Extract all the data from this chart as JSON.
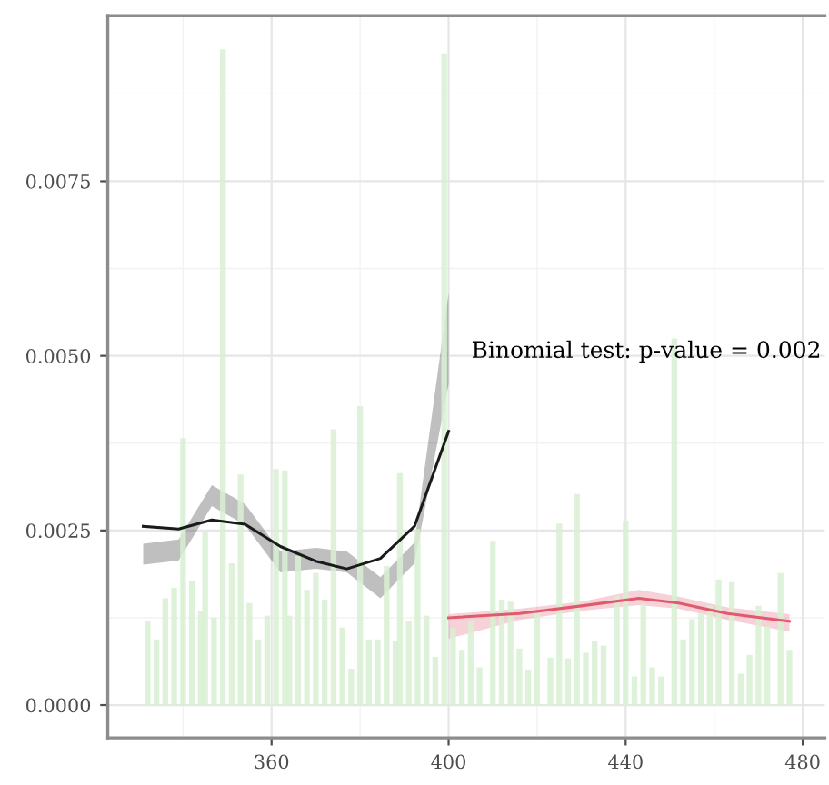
{
  "chart_data": {
    "type": "bar",
    "annotations": [
      "Binomial test: p-value = 0.002"
    ],
    "xlim": [
      323,
      485
    ],
    "ylim": [
      -0.00047,
      0.00987
    ],
    "xticks": [
      360,
      400,
      440,
      480
    ],
    "yticks": [
      {
        "value": 0,
        "label": "0.0000"
      },
      {
        "value": 0.0025,
        "label": "0.0025"
      },
      {
        "value": 0.005,
        "label": "0.0050"
      },
      {
        "value": 0.0075,
        "label": "0.0075"
      }
    ],
    "grid": true,
    "series": [
      {
        "color": "#d8f0d2",
        "x": [
          332,
          334,
          336,
          338,
          340,
          342,
          344,
          345,
          347,
          349,
          351,
          353,
          355,
          357,
          359,
          361,
          363,
          364,
          366,
          368,
          370,
          372,
          374,
          376,
          378,
          380,
          382,
          384,
          386,
          388,
          389,
          391,
          393,
          395,
          397,
          399,
          401,
          403,
          405,
          407,
          410,
          412,
          414,
          416,
          418,
          420,
          423,
          425,
          427,
          429,
          431,
          433,
          435,
          438,
          440,
          442,
          444,
          446,
          448,
          451,
          453,
          455,
          457,
          459,
          461,
          464,
          466,
          468,
          470,
          472,
          475,
          477
        ],
        "values": [
          0.0012,
          0.00094,
          0.00153,
          0.00168,
          0.00382,
          0.00178,
          0.00134,
          0.00249,
          0.00125,
          0.00939,
          0.00203,
          0.0033,
          0.00146,
          0.00094,
          0.00128,
          0.00338,
          0.00336,
          0.00128,
          0.00214,
          0.00165,
          0.00189,
          0.00151,
          0.00395,
          0.00111,
          0.00052,
          0.00428,
          0.00094,
          0.00094,
          0.00199,
          0.00092,
          0.00332,
          0.0012,
          0.00252,
          0.00128,
          0.00069,
          0.00933,
          0.00111,
          0.00079,
          0.00121,
          0.00054,
          0.00235,
          0.00151,
          0.00148,
          0.00081,
          0.00051,
          0.00131,
          0.00068,
          0.0026,
          0.00067,
          0.00302,
          0.00075,
          0.00092,
          0.00085,
          0.00157,
          0.00264,
          0.00041,
          0.00145,
          0.00054,
          0.00041,
          0.00525,
          0.00094,
          0.00123,
          0.00131,
          0.00142,
          0.0018,
          0.00176,
          0.00045,
          0.00072,
          0.00142,
          0.00113,
          0.00189,
          0.00079
        ]
      },
      {
        "type": "line",
        "color": "#1a1a1a",
        "x": [
          331,
          339,
          346.5,
          354,
          362,
          370,
          377,
          384.6,
          392.3,
          400
        ],
        "values": [
          0.00256,
          0.00252,
          0.00265,
          0.00259,
          0.00227,
          0.00206,
          0.00195,
          0.0021,
          0.00256,
          0.00392
        ],
        "lower": [
          0.00201,
          0.00207,
          0.00285,
          0.00258,
          0.0019,
          0.00195,
          0.0019,
          0.00153,
          0.00203,
          0.0046
        ],
        "upper": [
          0.00231,
          0.00237,
          0.00315,
          0.00288,
          0.0022,
          0.00225,
          0.0022,
          0.00183,
          0.00233,
          0.0059
        ]
      },
      {
        "type": "line",
        "color": "#e05a6e",
        "x": [
          400,
          416,
          430,
          443,
          452,
          463,
          477
        ],
        "values": [
          0.00125,
          0.00131,
          0.00142,
          0.00153,
          0.00146,
          0.00131,
          0.0012
        ],
        "lower": [
          0.00095,
          0.00122,
          0.00135,
          0.00143,
          0.00138,
          0.00122,
          0.00105
        ],
        "upper": [
          0.0013,
          0.00138,
          0.00148,
          0.00165,
          0.00155,
          0.0014,
          0.0013
        ]
      }
    ]
  }
}
